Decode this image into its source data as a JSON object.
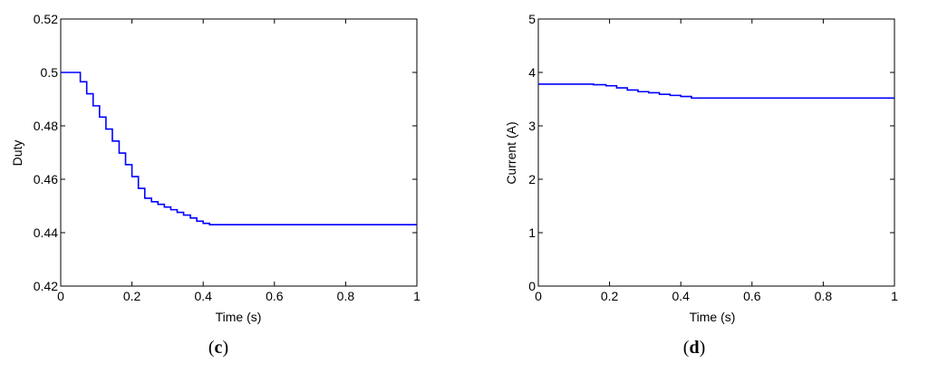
{
  "chart_data": [
    {
      "type": "line",
      "panel_label": [
        "(",
        "c",
        ")"
      ],
      "xlabel": "Time (s)",
      "ylabel": "Duty",
      "xlim": [
        0,
        1
      ],
      "ylim": [
        0.42,
        0.52
      ],
      "xticks": [
        "0",
        "0.2",
        "0.4",
        "0.6",
        "0.8",
        "1"
      ],
      "yticks": [
        "0.42",
        "0.44",
        "0.46",
        "0.48",
        "0.5",
        "0.52"
      ],
      "grid": false,
      "line_color": "#0000ff",
      "step": true,
      "series": [
        {
          "x": [
            0,
            0.055,
            0.073,
            0.091,
            0.109,
            0.127,
            0.145,
            0.164,
            0.182,
            0.2,
            0.218,
            0.236,
            0.255,
            0.273,
            0.291,
            0.309,
            0.327,
            0.345,
            0.364,
            0.382,
            0.4,
            0.418,
            1
          ],
          "y": [
            0.5,
            0.4965,
            0.492,
            0.4875,
            0.4833,
            0.4788,
            0.4743,
            0.4698,
            0.4655,
            0.461,
            0.4566,
            0.4529,
            0.4516,
            0.4506,
            0.4496,
            0.4486,
            0.4476,
            0.4466,
            0.4455,
            0.4443,
            0.4435,
            0.443,
            0.443
          ]
        }
      ]
    },
    {
      "type": "line",
      "panel_label": [
        "(",
        "d",
        ")"
      ],
      "xlabel": "Time (s)",
      "ylabel": "Current (A)",
      "xlim": [
        0,
        1
      ],
      "ylim": [
        0,
        5
      ],
      "xticks": [
        "0",
        "0.2",
        "0.4",
        "0.6",
        "0.8",
        "1"
      ],
      "yticks": [
        "0",
        "1",
        "2",
        "3",
        "4",
        "5"
      ],
      "grid": false,
      "line_color": "#0000ff",
      "step": true,
      "series": [
        {
          "x": [
            0,
            0.155,
            0.19,
            0.22,
            0.25,
            0.28,
            0.31,
            0.34,
            0.37,
            0.4,
            0.43,
            1
          ],
          "y": [
            3.78,
            3.77,
            3.75,
            3.71,
            3.67,
            3.64,
            3.62,
            3.59,
            3.57,
            3.55,
            3.52,
            3.52
          ]
        }
      ]
    }
  ]
}
